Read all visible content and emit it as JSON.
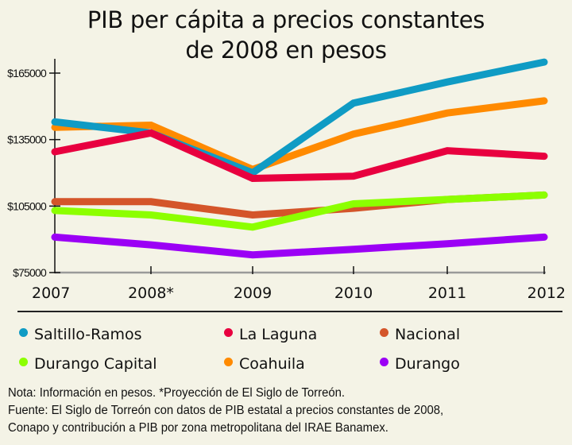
{
  "chart_data": {
    "type": "line",
    "title": "PIB per cápita a precios constantes de 2008 en pesos",
    "xlabel": "",
    "ylabel": "",
    "categories": [
      "2007",
      "2008*",
      "2009",
      "2010",
      "2011",
      "2012"
    ],
    "ylim": [
      75000,
      165000
    ],
    "yticks": [
      75000,
      105000,
      135000,
      165000
    ],
    "ytick_labels": [
      "$75000",
      "$105000",
      "$135000",
      "$165000"
    ],
    "grid": false,
    "legend_position": "bottom",
    "series": [
      {
        "name": "Saltillo-Ramos",
        "color": "#0f9bc4",
        "values": [
          143000,
          138000,
          120000,
          151500,
          161000,
          170000
        ]
      },
      {
        "name": "Coahuila",
        "color": "#ff8a00",
        "values": [
          140500,
          141500,
          121500,
          137500,
          147000,
          152500
        ]
      },
      {
        "name": "La Laguna",
        "color": "#e8003f",
        "values": [
          129500,
          138000,
          117500,
          118500,
          130000,
          127500
        ]
      },
      {
        "name": "Nacional",
        "color": "#d4552a",
        "values": [
          107000,
          107000,
          101000,
          104000,
          108000,
          110000
        ]
      },
      {
        "name": "Durango Capital",
        "color": "#8cff00",
        "values": [
          103000,
          101000,
          95500,
          106000,
          108000,
          110000
        ]
      },
      {
        "name": "Durango",
        "color": "#9b00f5",
        "values": [
          91000,
          87500,
          83000,
          85500,
          88000,
          91000
        ]
      }
    ]
  },
  "header": {
    "title_line1": "PIB per cápita a precios constantes",
    "title_line2": "de 2008 en pesos"
  },
  "legend": {
    "items": [
      {
        "label": "Saltillo-Ramos",
        "color": "#0f9bc4"
      },
      {
        "label": "La Laguna",
        "color": "#e8003f"
      },
      {
        "label": "Nacional",
        "color": "#d4552a"
      },
      {
        "label": "Durango Capital",
        "color": "#8cff00"
      },
      {
        "label": "Coahuila",
        "color": "#ff8a00"
      },
      {
        "label": "Durango",
        "color": "#9b00f5"
      }
    ]
  },
  "notes": {
    "line1": "Nota: Información en pesos. *Proyección de El Siglo de Torreón.",
    "line2": "Fuente: El Siglo de Torreón con datos de PIB estatal a precios constantes de 2008,",
    "line3": "Conapo y contribución a PIB por zona metropolitana del IRAE Banamex."
  }
}
